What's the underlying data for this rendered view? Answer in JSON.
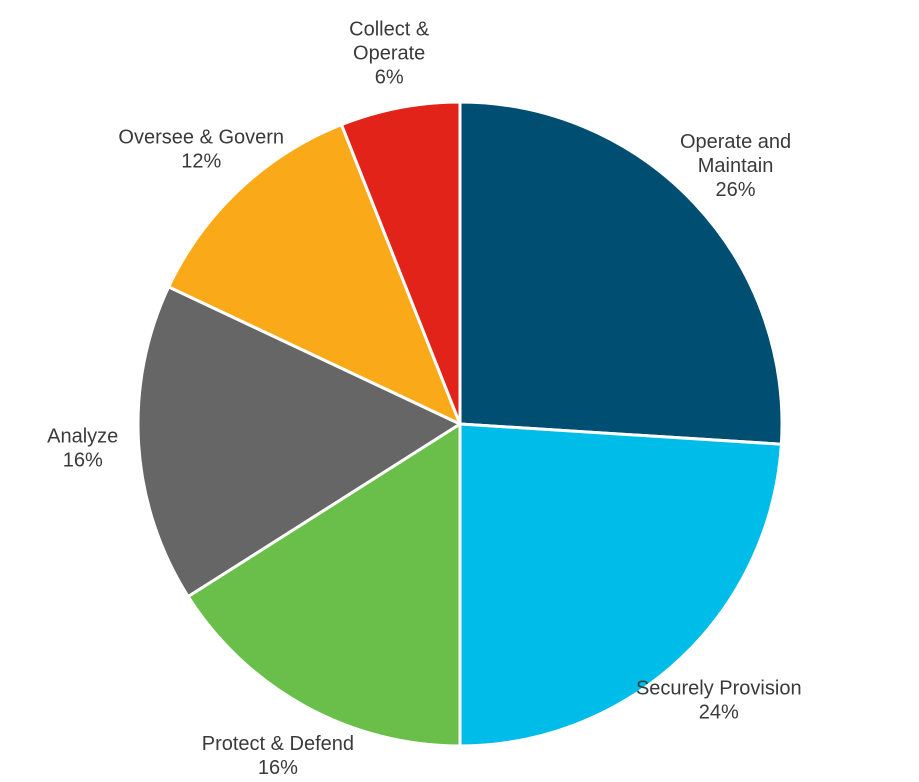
{
  "chart_data": {
    "type": "pie",
    "title": "",
    "slices": [
      {
        "label": [
          "Operate and",
          "Maintain"
        ],
        "value": 26,
        "value_label": "26%",
        "color": "#004F72"
      },
      {
        "label": [
          "Securely Provision"
        ],
        "value": 24,
        "value_label": "24%",
        "color": "#00BCE9"
      },
      {
        "label": [
          "Protect & Defend"
        ],
        "value": 16,
        "value_label": "16%",
        "color": "#6ABF4B"
      },
      {
        "label": [
          "Analyze"
        ],
        "value": 16,
        "value_label": "16%",
        "color": "#666666"
      },
      {
        "label": [
          "Oversee & Govern"
        ],
        "value": 12,
        "value_label": "12%",
        "color": "#FAA918"
      },
      {
        "label": [
          "Collect &",
          "Operate"
        ],
        "value": 6,
        "value_label": "6%",
        "color": "#E2231A"
      }
    ],
    "start_angle": "12 o'clock",
    "direction": "clockwise",
    "slice_border_color": "#ffffff",
    "legend": "none"
  }
}
